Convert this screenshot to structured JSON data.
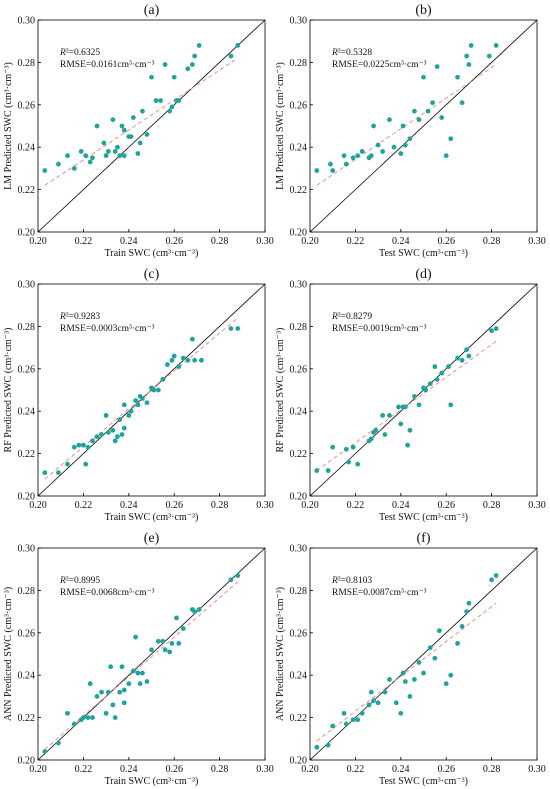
{
  "figure": {
    "colors": {
      "points": "#22a39a",
      "fit_line": "#e98f8f",
      "identity_line": "#000000"
    }
  },
  "chart_data": [
    {
      "type": "scatter",
      "panel_label": "(a)",
      "xlabel": "Train  SWC (cm³·cm⁻³)",
      "ylabel": "LM Predicted SWC (cm³·cm⁻³)",
      "xlim": [
        0.2,
        0.3
      ],
      "ylim": [
        0.2,
        0.3
      ],
      "xticks": [
        "0.20",
        "0.22",
        "0.24",
        "0.26",
        "0.28",
        "0.30"
      ],
      "yticks": [
        "0.20",
        "0.22",
        "0.24",
        "0.26",
        "0.28",
        "0.30"
      ],
      "r2_label": "R",
      "r2_value": "²=0.6325",
      "rmse_text": "RMSE=0.0161cm³·cm⁻³",
      "fit_line": {
        "x": [
          0.203,
          0.288
        ],
        "y": [
          0.222,
          0.282
        ]
      },
      "x": [
        0.203,
        0.209,
        0.213,
        0.216,
        0.219,
        0.221,
        0.223,
        0.224,
        0.226,
        0.229,
        0.23,
        0.231,
        0.233,
        0.234,
        0.235,
        0.236,
        0.237,
        0.238,
        0.238,
        0.24,
        0.241,
        0.242,
        0.244,
        0.245,
        0.246,
        0.248,
        0.25,
        0.252,
        0.254,
        0.256,
        0.258,
        0.259,
        0.26,
        0.261,
        0.262,
        0.266,
        0.268,
        0.269,
        0.271,
        0.285,
        0.288
      ],
      "y": [
        0.229,
        0.232,
        0.236,
        0.23,
        0.238,
        0.236,
        0.233,
        0.235,
        0.25,
        0.242,
        0.236,
        0.238,
        0.253,
        0.238,
        0.24,
        0.236,
        0.25,
        0.236,
        0.248,
        0.245,
        0.245,
        0.254,
        0.237,
        0.242,
        0.257,
        0.246,
        0.273,
        0.262,
        0.262,
        0.279,
        0.257,
        0.259,
        0.273,
        0.262,
        0.262,
        0.277,
        0.279,
        0.283,
        0.288,
        0.283,
        0.288
      ]
    },
    {
      "type": "scatter",
      "panel_label": "(b)",
      "xlabel": "Test  SWC (cm³·cm⁻³)",
      "ylabel": "LM Predicted SWC (cm³·cm⁻³)",
      "xlim": [
        0.2,
        0.3
      ],
      "ylim": [
        0.2,
        0.3
      ],
      "xticks": [
        "0.20",
        "0.22",
        "0.24",
        "0.26",
        "0.28",
        "0.30"
      ],
      "yticks": [
        "0.20",
        "0.22",
        "0.24",
        "0.26",
        "0.28",
        "0.30"
      ],
      "r2_label": "R",
      "r2_value": "²=0.5328",
      "rmse_text": "RMSE=0.0225cm³·cm⁻³",
      "fit_line": {
        "x": [
          0.203,
          0.282
        ],
        "y": [
          0.222,
          0.279
        ]
      },
      "x": [
        0.203,
        0.209,
        0.21,
        0.215,
        0.216,
        0.219,
        0.221,
        0.223,
        0.226,
        0.227,
        0.228,
        0.23,
        0.232,
        0.235,
        0.237,
        0.24,
        0.241,
        0.242,
        0.244,
        0.246,
        0.248,
        0.25,
        0.252,
        0.254,
        0.256,
        0.258,
        0.26,
        0.262,
        0.265,
        0.267,
        0.269,
        0.27,
        0.271,
        0.279,
        0.282
      ],
      "y": [
        0.229,
        0.232,
        0.229,
        0.236,
        0.232,
        0.235,
        0.236,
        0.238,
        0.235,
        0.236,
        0.25,
        0.241,
        0.238,
        0.253,
        0.24,
        0.237,
        0.25,
        0.241,
        0.244,
        0.257,
        0.253,
        0.273,
        0.257,
        0.261,
        0.278,
        0.254,
        0.236,
        0.244,
        0.273,
        0.261,
        0.283,
        0.279,
        0.288,
        0.283,
        0.288
      ]
    },
    {
      "type": "scatter",
      "panel_label": "(c)",
      "xlabel": "Train  SWC (cm³·cm⁻³)",
      "ylabel": "RF Predicted SWC (cm³·cm⁻³)",
      "xlim": [
        0.2,
        0.3
      ],
      "ylim": [
        0.2,
        0.3
      ],
      "xticks": [
        "0.20",
        "0.22",
        "0.24",
        "0.26",
        "0.28",
        "0.30"
      ],
      "yticks": [
        "0.20",
        "0.22",
        "0.24",
        "0.26",
        "0.28",
        "0.30"
      ],
      "r2_label": "R",
      "r2_value": "²=0.9283",
      "rmse_text": "RMSE=0.0003cm³·cm⁻³",
      "fit_line": {
        "x": [
          0.203,
          0.288
        ],
        "y": [
          0.208,
          0.284
        ]
      },
      "x": [
        0.203,
        0.209,
        0.213,
        0.216,
        0.218,
        0.22,
        0.221,
        0.222,
        0.224,
        0.226,
        0.228,
        0.23,
        0.231,
        0.233,
        0.234,
        0.235,
        0.236,
        0.237,
        0.238,
        0.238,
        0.24,
        0.241,
        0.243,
        0.244,
        0.245,
        0.246,
        0.248,
        0.25,
        0.251,
        0.253,
        0.255,
        0.257,
        0.259,
        0.26,
        0.262,
        0.264,
        0.266,
        0.268,
        0.269,
        0.272,
        0.285,
        0.288
      ],
      "y": [
        0.211,
        0.211,
        0.215,
        0.223,
        0.224,
        0.224,
        0.215,
        0.223,
        0.226,
        0.228,
        0.229,
        0.238,
        0.23,
        0.231,
        0.226,
        0.228,
        0.236,
        0.229,
        0.232,
        0.243,
        0.238,
        0.24,
        0.245,
        0.243,
        0.247,
        0.246,
        0.244,
        0.251,
        0.25,
        0.25,
        0.255,
        0.262,
        0.264,
        0.266,
        0.261,
        0.265,
        0.264,
        0.274,
        0.264,
        0.264,
        0.279,
        0.279
      ]
    },
    {
      "type": "scatter",
      "panel_label": "(d)",
      "xlabel": "Test  SWC (cm³·cm⁻³)",
      "ylabel": "RF Predicted SWC (cm³·cm⁻³)",
      "xlim": [
        0.2,
        0.3
      ],
      "ylim": [
        0.2,
        0.3
      ],
      "xticks": [
        "0.20",
        "0.22",
        "0.24",
        "0.26",
        "0.28",
        "0.30"
      ],
      "yticks": [
        "0.20",
        "0.22",
        "0.24",
        "0.26",
        "0.28",
        "0.30"
      ],
      "r2_label": "R",
      "r2_value": "²=0.8279",
      "rmse_text": "RMSE=0.0019cm³·cm⁻³",
      "fit_line": {
        "x": [
          0.203,
          0.282
        ],
        "y": [
          0.212,
          0.273
        ]
      },
      "x": [
        0.203,
        0.208,
        0.21,
        0.216,
        0.217,
        0.219,
        0.221,
        0.226,
        0.227,
        0.228,
        0.229,
        0.232,
        0.233,
        0.235,
        0.239,
        0.24,
        0.241,
        0.242,
        0.243,
        0.244,
        0.246,
        0.248,
        0.25,
        0.251,
        0.253,
        0.255,
        0.256,
        0.258,
        0.261,
        0.262,
        0.265,
        0.267,
        0.269,
        0.27,
        0.28,
        0.282
      ],
      "y": [
        0.212,
        0.212,
        0.223,
        0.222,
        0.216,
        0.223,
        0.215,
        0.226,
        0.227,
        0.23,
        0.231,
        0.238,
        0.229,
        0.238,
        0.242,
        0.234,
        0.242,
        0.242,
        0.224,
        0.231,
        0.247,
        0.243,
        0.251,
        0.25,
        0.253,
        0.261,
        0.255,
        0.258,
        0.261,
        0.243,
        0.265,
        0.264,
        0.269,
        0.266,
        0.278,
        0.279
      ]
    },
    {
      "type": "scatter",
      "panel_label": "(e)",
      "xlabel": "Train  SWC (cm³·cm⁻³)",
      "ylabel": "ANN Predicted SWC (cm³·cm⁻³)",
      "xlim": [
        0.2,
        0.3
      ],
      "ylim": [
        0.2,
        0.3
      ],
      "xticks": [
        "0.20",
        "0.22",
        "0.24",
        "0.26",
        "0.28",
        "0.30"
      ],
      "yticks": [
        "0.20",
        "0.22",
        "0.24",
        "0.26",
        "0.28",
        "0.30"
      ],
      "r2_label": "R",
      "r2_value": "²=0.8995",
      "rmse_text": "RMSE=0.0068cm³·cm⁻³",
      "fit_line": {
        "x": [
          0.203,
          0.288
        ],
        "y": [
          0.205,
          0.284
        ]
      },
      "x": [
        0.203,
        0.209,
        0.213,
        0.216,
        0.219,
        0.22,
        0.222,
        0.223,
        0.224,
        0.226,
        0.228,
        0.23,
        0.231,
        0.232,
        0.233,
        0.234,
        0.236,
        0.237,
        0.238,
        0.238,
        0.24,
        0.242,
        0.243,
        0.244,
        0.245,
        0.246,
        0.248,
        0.25,
        0.253,
        0.255,
        0.256,
        0.258,
        0.259,
        0.261,
        0.262,
        0.264,
        0.268,
        0.269,
        0.271,
        0.285,
        0.288
      ],
      "y": [
        0.204,
        0.208,
        0.222,
        0.217,
        0.219,
        0.22,
        0.22,
        0.236,
        0.22,
        0.23,
        0.232,
        0.222,
        0.232,
        0.244,
        0.226,
        0.22,
        0.232,
        0.244,
        0.233,
        0.227,
        0.236,
        0.242,
        0.258,
        0.241,
        0.236,
        0.241,
        0.237,
        0.252,
        0.256,
        0.256,
        0.252,
        0.251,
        0.255,
        0.267,
        0.255,
        0.262,
        0.271,
        0.27,
        0.271,
        0.285,
        0.287
      ]
    },
    {
      "type": "scatter",
      "panel_label": "(f)",
      "xlabel": "Test  SWC (cm³·cm⁻³)",
      "ylabel": "ANN Predicted SWC (cm³·cm⁻³)",
      "xlim": [
        0.2,
        0.3
      ],
      "ylim": [
        0.2,
        0.3
      ],
      "xticks": [
        "0.20",
        "0.22",
        "0.24",
        "0.26",
        "0.28",
        "0.30"
      ],
      "yticks": [
        "0.20",
        "0.22",
        "0.24",
        "0.26",
        "0.28",
        "0.30"
      ],
      "r2_label": "R",
      "r2_value": "²=0.8103",
      "rmse_text": "RMSE=0.0087cm³·cm⁻³",
      "fit_line": {
        "x": [
          0.203,
          0.282
        ],
        "y": [
          0.209,
          0.274
        ]
      },
      "x": [
        0.203,
        0.208,
        0.21,
        0.215,
        0.216,
        0.219,
        0.221,
        0.223,
        0.226,
        0.227,
        0.228,
        0.23,
        0.233,
        0.235,
        0.238,
        0.24,
        0.241,
        0.242,
        0.244,
        0.246,
        0.248,
        0.25,
        0.253,
        0.255,
        0.257,
        0.26,
        0.262,
        0.265,
        0.267,
        0.269,
        0.27,
        0.28,
        0.282
      ],
      "y": [
        0.206,
        0.207,
        0.216,
        0.222,
        0.217,
        0.219,
        0.219,
        0.222,
        0.226,
        0.232,
        0.228,
        0.227,
        0.232,
        0.238,
        0.227,
        0.222,
        0.241,
        0.237,
        0.23,
        0.238,
        0.246,
        0.241,
        0.253,
        0.248,
        0.261,
        0.236,
        0.24,
        0.255,
        0.263,
        0.27,
        0.274,
        0.285,
        0.287
      ]
    }
  ]
}
